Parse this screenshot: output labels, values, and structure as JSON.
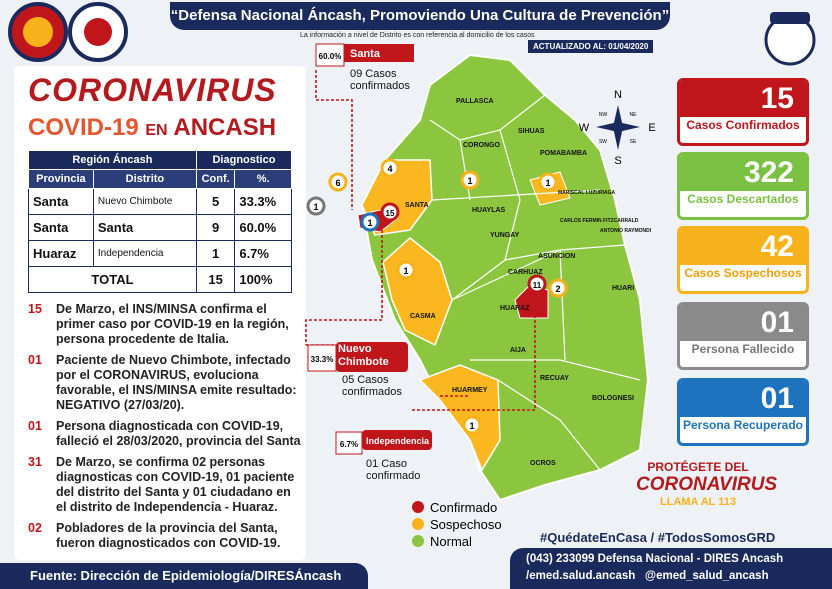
{
  "header": {
    "title": "“Defensa Nacional Áncash, Promoviendo Una Cultura de Prevención”",
    "note": "La información a nivel de Distrito es con referencia al domicilio de los casos",
    "updated": "ACTUALIZADO AL: 01/04/2020"
  },
  "headline": {
    "line1": "CORONAVIRUS",
    "line2": "COVID-19",
    "line3": "EN",
    "line4": "ANCASH"
  },
  "table": {
    "group_headers": [
      "Región Áncash",
      "Diagnostico"
    ],
    "headers": [
      "Provincia",
      "Distrito",
      "Conf.",
      "%."
    ],
    "rows": [
      [
        "Santa",
        "Nuevo Chimbote",
        5,
        "33.3%"
      ],
      [
        "Santa",
        "Santa",
        9,
        "60.0%"
      ],
      [
        "Huaraz",
        "Independencia",
        1,
        "6.7%"
      ]
    ],
    "total": [
      "TOTAL",
      15,
      "100%"
    ]
  },
  "notes": [
    {
      "date": "15",
      "text": "De Marzo, el INS/MINSA confirma el primer caso por COVID-19 en la región, persona procedente de Italia."
    },
    {
      "date": "01",
      "text": "Paciente de Nuevo Chimbote, infectado por el CORONAVIRUS, evoluciona favorable, el INS/MINSA emite resultado: NEGATIVO (27/03/20)."
    },
    {
      "date": "01",
      "text": "Persona diagnosticada con COVID-19, falleció el 28/03/2020, provincia del Santa"
    },
    {
      "date": "31",
      "text": "De Marzo, se confirma 02 personas diagnosticas con COVID-19, 01 paciente del distrito del Santa y 01 ciudadano en el distrito de Independencia - Huaraz."
    },
    {
      "date": "02",
      "text": "Pobladores de la provincia del Santa, fueron diagnosticados con COVID-19."
    }
  ],
  "map": {
    "provinces": [
      "PALLASCA",
      "CORONGO",
      "SIHUAS",
      "POMABAMBA",
      "SANTA",
      "HUAYLAS",
      "MARISCAL LUZURIAGA",
      "CARLOS FERMIN FITZCARRALD",
      "YUNGAY",
      "ASUNCION",
      "ANTONIO RAYMONDI",
      "CASMA",
      "CARHUAZ",
      "HUARI",
      "HUARAZ",
      "AIJA",
      "RECUAY",
      "BOLOGNESI",
      "HUARMEY",
      "OCROS"
    ],
    "pins": [
      6,
      1,
      1,
      15,
      4,
      1,
      1,
      1,
      11,
      2,
      1
    ],
    "compass": [
      "N",
      "S",
      "E",
      "W",
      "NW",
      "NE",
      "SW",
      "SE"
    ],
    "callouts": [
      {
        "name": "Santa",
        "percent": "60.0%",
        "text": "09 Casos confirmados"
      },
      {
        "name": "Nuevo Chimbote",
        "percent": "33.3%",
        "text": "05 Casos confirmados"
      },
      {
        "name": "Independencia",
        "percent": "6.7%",
        "text": "01 Caso confirmado"
      }
    ]
  },
  "legend": [
    "Confirmado",
    "Sospechoso",
    "Normal"
  ],
  "cards": [
    {
      "value": 15,
      "label": "Casos Confirmados"
    },
    {
      "value": 322,
      "label": "Casos Descartados"
    },
    {
      "value": 42,
      "label": "Casos Sospechosos"
    },
    {
      "value": "01",
      "label": "Persona Fallecido"
    },
    {
      "value": "01",
      "label": "Persona Recuperado"
    }
  ],
  "protect": {
    "line1": "PROTÉGETE DEL",
    "line2": "CORONAVIRUS",
    "line3": "LLAMA AL 113"
  },
  "hashtags": "#QuédateEnCasa / #TodosSomosGRD",
  "footer": {
    "source": "Fuente: Dirección de Epidemiología/DIRESÁncash",
    "phone": "(043) 233099 Defensa Nacional - DIRES Ancash",
    "facebook": "/emed.salud.ancash",
    "twitter": "@emed_salud_ancash"
  }
}
